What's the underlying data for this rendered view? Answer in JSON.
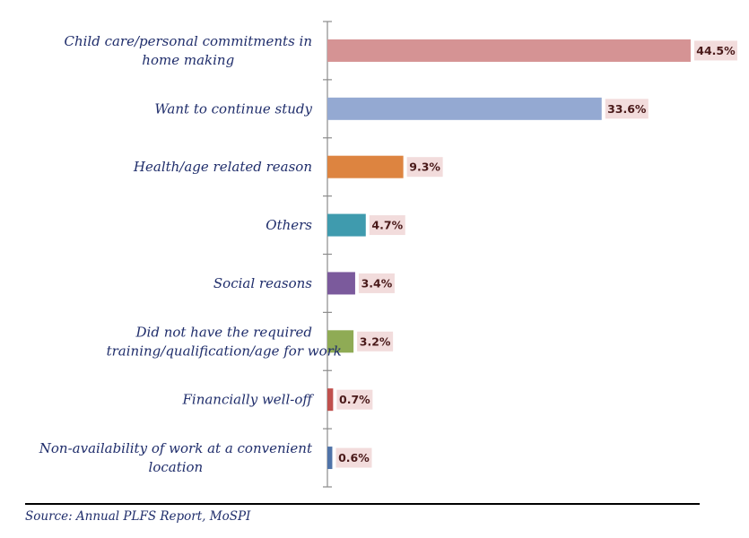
{
  "chart_data": {
    "type": "bar",
    "orientation": "horizontal",
    "categories": [
      [
        "Child care/personal commitments in",
        "home making"
      ],
      [
        "Want to continue study"
      ],
      [
        "Health/age related reason"
      ],
      [
        "Others"
      ],
      [
        "Social reasons"
      ],
      [
        "Did not have the required",
        "training/qualification/age for work"
      ],
      [
        "Financially well-off"
      ],
      [
        "Non-availability of work at a convenient",
        "location"
      ]
    ],
    "values": [
      44.5,
      33.6,
      9.3,
      4.7,
      3.4,
      3.2,
      0.7,
      0.6
    ],
    "value_labels": [
      "44.5%",
      "33.6%",
      "9.3%",
      "4.7%",
      "3.4%",
      "3.2%",
      "0.7%",
      "0.6%"
    ],
    "colors": [
      "#d59394",
      "#94a9d2",
      "#dd8440",
      "#3f9bae",
      "#7b5a9c",
      "#8fab55",
      "#c0504d",
      "#4f73a8"
    ],
    "label_bg_color": "#f2dcdc",
    "xlim": [
      0,
      50
    ],
    "grid": false,
    "legend": "none"
  },
  "source": "Source: Annual PLFS Report, MoSPI"
}
